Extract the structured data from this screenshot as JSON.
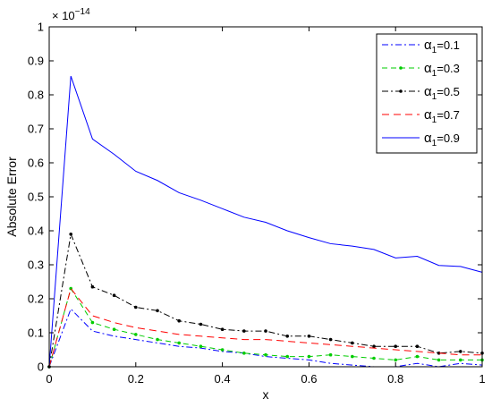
{
  "chart_data": {
    "type": "line",
    "title": "",
    "xlabel": "x",
    "ylabel": "Absolute Error",
    "y_exponent": {
      "base": "× 10",
      "power": "−14"
    },
    "xlim": [
      0,
      1
    ],
    "ylim": [
      0,
      1
    ],
    "x_ticks": [
      "0",
      "0.2",
      "0.4",
      "0.6",
      "0.8",
      "1"
    ],
    "y_ticks": [
      "0",
      "0.1",
      "0.2",
      "0.3",
      "0.4",
      "0.5",
      "0.6",
      "0.7",
      "0.8",
      "0.9",
      "1"
    ],
    "grid": false,
    "legend_position": "top-right",
    "x": [
      0,
      0.05,
      0.1,
      0.15,
      0.2,
      0.25,
      0.3,
      0.35,
      0.4,
      0.45,
      0.5,
      0.55,
      0.6,
      0.65,
      0.7,
      0.75,
      0.8,
      0.85,
      0.9,
      0.95,
      1.0
    ],
    "series": [
      {
        "symbol": "α",
        "subscript": "1",
        "value": "=0.1",
        "color": "#0000ff",
        "dash": "7,3,2,3",
        "marker": "none",
        "values": [
          0,
          0.17,
          0.105,
          0.09,
          0.08,
          0.07,
          0.06,
          0.055,
          0.045,
          0.04,
          0.03,
          0.025,
          0.02,
          0.01,
          0.005,
          0.0,
          0.0,
          0.01,
          0.0,
          0.01,
          0.005
        ]
      },
      {
        "symbol": "α",
        "subscript": "1",
        "value": "=0.3",
        "color": "#00cc00",
        "dash": "6,4",
        "marker": "dot",
        "values": [
          0,
          0.23,
          0.13,
          0.11,
          0.095,
          0.08,
          0.07,
          0.06,
          0.05,
          0.04,
          0.035,
          0.03,
          0.03,
          0.035,
          0.03,
          0.025,
          0.02,
          0.03,
          0.02,
          0.02,
          0.02
        ]
      },
      {
        "symbol": "α",
        "subscript": "1",
        "value": "=0.5",
        "color": "#000000",
        "dash": "7,3,2,3",
        "marker": "dot",
        "values": [
          0,
          0.39,
          0.235,
          0.21,
          0.175,
          0.165,
          0.135,
          0.125,
          0.11,
          0.105,
          0.105,
          0.09,
          0.09,
          0.08,
          0.07,
          0.06,
          0.06,
          0.06,
          0.04,
          0.045,
          0.04
        ]
      },
      {
        "symbol": "α",
        "subscript": "1",
        "value": "=0.7",
        "color": "#ff0000",
        "dash": "8,5",
        "marker": "none",
        "values": [
          0,
          0.23,
          0.15,
          0.13,
          0.115,
          0.105,
          0.095,
          0.09,
          0.085,
          0.08,
          0.08,
          0.075,
          0.07,
          0.065,
          0.06,
          0.055,
          0.05,
          0.045,
          0.04,
          0.035,
          0.035
        ]
      },
      {
        "symbol": "α",
        "subscript": "1",
        "value": "=0.9",
        "color": "#0000ff",
        "dash": "",
        "marker": "none",
        "values": [
          0,
          0.855,
          0.67,
          0.625,
          0.575,
          0.548,
          0.512,
          0.49,
          0.465,
          0.44,
          0.425,
          0.4,
          0.38,
          0.362,
          0.355,
          0.345,
          0.32,
          0.325,
          0.298,
          0.295,
          0.278
        ]
      }
    ]
  }
}
